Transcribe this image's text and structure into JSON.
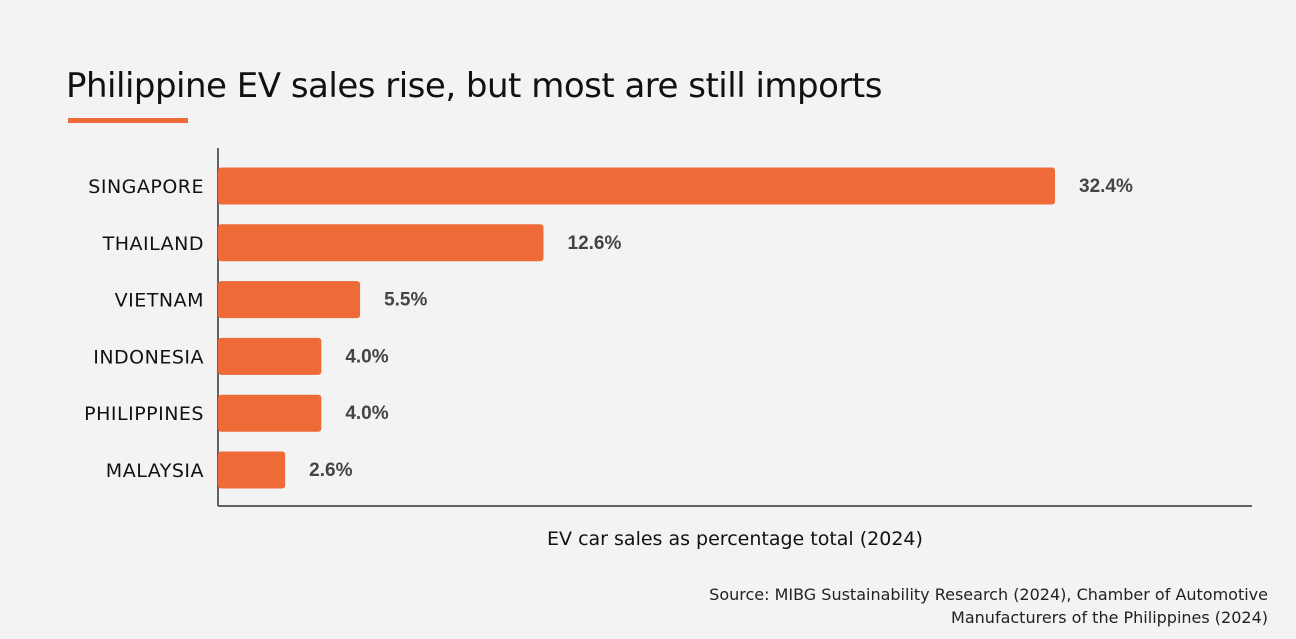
{
  "colors": {
    "background": "#f3f3f3",
    "bar": "#ee6b38",
    "accent": "#ee6b38",
    "axis": "#333333",
    "text": "#111111",
    "value_text": "#444444"
  },
  "chart_data": {
    "type": "bar",
    "orientation": "horizontal",
    "title": "Philippine EV sales rise, but most are still imports",
    "xlabel": "EV car sales as percentage total (2024)",
    "ylabel": "",
    "categories": [
      "SINGAPORE",
      "THAILAND",
      "VIETNAM",
      "INDONESIA",
      "PHILIPPINES",
      "MALAYSIA"
    ],
    "values": [
      32.4,
      12.6,
      5.5,
      4.0,
      4.0,
      2.6
    ],
    "value_labels": [
      "32.4%",
      "12.6%",
      "5.5%",
      "4.0%",
      "4.0%",
      "2.6%"
    ],
    "xlim": [
      0,
      40
    ],
    "grid": false,
    "legend": "none",
    "source": [
      "Source: MIBG Sustainability Research (2024), Chamber of Automotive",
      "Manufacturers of the Philippines (2024)"
    ]
  }
}
